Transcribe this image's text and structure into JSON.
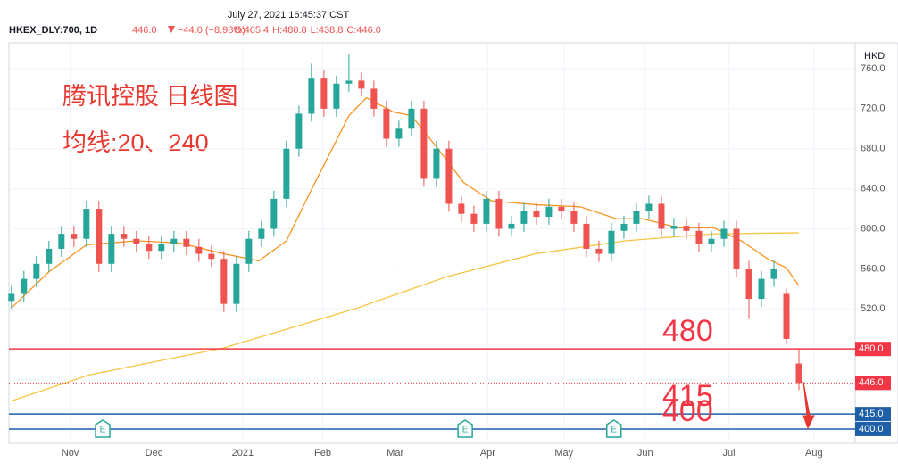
{
  "chart_data": {
    "type": "candlestick",
    "header_time": "July 27, 2021 16:45:37 CST",
    "symbol": "HKEX_DLY:700, 1D",
    "last": "446.0",
    "change": "−44.0 (−8.98%)",
    "ohlc_text": [
      "O:465.4",
      "H:480.8",
      "L:438.8",
      "C:446.0"
    ],
    "currency": "HKD",
    "annotations": [
      "腾讯控股 日线图",
      "均线:20、240"
    ],
    "up_color": "#26a69a",
    "down_color": "#ef5350",
    "xlim": [
      -0.2,
      67.5
    ],
    "xticks": [
      {
        "value": 4.7,
        "label": "Nov"
      },
      {
        "value": 11.4,
        "label": "Dec"
      },
      {
        "value": 18.5,
        "label": "2021"
      },
      {
        "value": 24.9,
        "label": "Feb"
      },
      {
        "value": 30.7,
        "label": "Mar"
      },
      {
        "value": 38.1,
        "label": "Apr"
      },
      {
        "value": 44.2,
        "label": "May"
      },
      {
        "value": 50.7,
        "label": "Jun"
      },
      {
        "value": 57.4,
        "label": "Jul"
      },
      {
        "value": 64.2,
        "label": "Aug"
      }
    ],
    "ylim": [
      385.7,
      785.8
    ],
    "yticks": [
      {
        "value": 520,
        "label": "520.0"
      },
      {
        "value": 560,
        "label": "560.0"
      },
      {
        "value": 600,
        "label": "600.0"
      },
      {
        "value": 640,
        "label": "640.0"
      },
      {
        "value": 680,
        "label": "680.0"
      },
      {
        "value": 720,
        "label": "720.0"
      },
      {
        "value": 760,
        "label": "760.0"
      }
    ],
    "candles": {
      "open": [
        528,
        535,
        550,
        565,
        580,
        595,
        590,
        620,
        565,
        595,
        590,
        585,
        578,
        585,
        590,
        582,
        575,
        570,
        525,
        565,
        590,
        600,
        630,
        680,
        715,
        750,
        720,
        745,
        748,
        740,
        720,
        690,
        700,
        720,
        650,
        680,
        625,
        615,
        605,
        630,
        600,
        605,
        618,
        612,
        622,
        618,
        605,
        580,
        575,
        598,
        605,
        618,
        625,
        600,
        603,
        598,
        585,
        590,
        600,
        560,
        530,
        550,
        535,
        465.4
      ],
      "high": [
        543,
        558,
        573,
        588,
        603,
        603,
        628,
        628,
        603,
        603,
        598,
        593,
        593,
        598,
        598,
        590,
        583,
        578,
        573,
        598,
        608,
        638,
        688,
        723,
        765,
        758,
        753,
        775,
        756,
        748,
        728,
        708,
        728,
        728,
        688,
        688,
        633,
        623,
        638,
        638,
        613,
        626,
        626,
        630,
        630,
        626,
        613,
        588,
        606,
        613,
        626,
        633,
        633,
        611,
        611,
        606,
        598,
        608,
        608,
        568,
        558,
        568,
        540,
        480.8
      ],
      "low": [
        520,
        527,
        542,
        557,
        572,
        582,
        582,
        557,
        557,
        582,
        577,
        570,
        570,
        577,
        574,
        567,
        562,
        517,
        517,
        557,
        582,
        592,
        622,
        672,
        707,
        712,
        712,
        737,
        732,
        712,
        682,
        682,
        692,
        642,
        642,
        617,
        607,
        597,
        597,
        592,
        592,
        597,
        604,
        604,
        610,
        597,
        572,
        567,
        567,
        590,
        597,
        610,
        592,
        592,
        590,
        577,
        577,
        582,
        552,
        510,
        522,
        542,
        485,
        438.8
      ],
      "close": [
        535,
        550,
        565,
        580,
        595,
        590,
        620,
        565,
        595,
        590,
        585,
        578,
        585,
        590,
        582,
        575,
        570,
        525,
        565,
        590,
        600,
        630,
        680,
        715,
        750,
        720,
        745,
        748,
        740,
        720,
        690,
        700,
        720,
        650,
        680,
        625,
        615,
        605,
        630,
        600,
        605,
        618,
        612,
        622,
        618,
        605,
        580,
        575,
        598,
        605,
        618,
        625,
        600,
        603,
        598,
        585,
        590,
        600,
        560,
        530,
        550,
        560,
        490,
        446.0
      ]
    },
    "series": [
      {
        "name": "MA20",
        "color": "#f7931e",
        "x": [
          0,
          3,
          6,
          10,
          13.4,
          17,
          19.8,
          22,
          24,
          27,
          28.4,
          30.5,
          32,
          34,
          36.2,
          38.4,
          42,
          45.5,
          48.4,
          50.5,
          53.4,
          56.2,
          58.4,
          60.5,
          62,
          63
        ],
        "values": [
          521,
          557,
          584,
          588,
          586,
          575,
          568,
          588,
          639,
          713,
          731,
          717,
          713,
          682,
          646,
          628,
          624,
          622,
          610,
          610,
          601,
          601,
          588,
          570,
          561,
          543
        ]
      },
      {
        "name": "MA240",
        "color": "#f5c542",
        "x": [
          0,
          6.2,
          17,
          27.7,
          34.8,
          41.9,
          49.1,
          56.2,
          63
        ],
        "values": [
          428,
          454,
          481,
          521,
          552,
          575,
          588,
          595,
          596
        ]
      }
    ],
    "levels": [
      {
        "value": 480,
        "label": "480.0",
        "note": "480",
        "color": "#f23645"
      },
      {
        "value": 415,
        "label": "415.0",
        "note": "415",
        "color": "#1e5fa8"
      },
      {
        "value": 400,
        "label": "400.0",
        "note": "400",
        "color": "#1e5fa8"
      }
    ],
    "last_price": {
      "value": 446,
      "label": "446.0",
      "color": "#f23645"
    },
    "earnings": [
      {
        "x": 7.3,
        "label": "E"
      },
      {
        "x": 36.3,
        "label": "E"
      },
      {
        "x": 48.2,
        "label": "E"
      }
    ]
  }
}
